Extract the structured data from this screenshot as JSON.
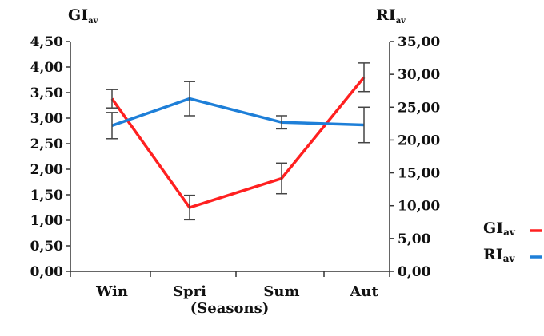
{
  "chart_data": {
    "type": "line",
    "categories": [
      "Win",
      "Spri",
      "Sum",
      "Aut"
    ],
    "xlabel": "(Seasons)",
    "y_left": {
      "label_main": "GI",
      "label_sub": "av",
      "range": [
        0,
        4.5
      ],
      "ticks": [
        "0,00",
        "0,50",
        "1,00",
        "1,50",
        "2,00",
        "2,50",
        "3,00",
        "3,50",
        "4,00",
        "4,50"
      ]
    },
    "y_right": {
      "label_main": "RI",
      "label_sub": "av",
      "range": [
        0,
        35
      ],
      "ticks": [
        "0,00",
        "5,00",
        "10,00",
        "15,00",
        "20,00",
        "25,00",
        "30,00",
        "35,00"
      ]
    },
    "series": [
      {
        "name": "GI",
        "name_sub": "av",
        "axis": "left",
        "color": "#ff2020",
        "values": [
          3.38,
          1.25,
          1.82,
          3.8
        ],
        "error": [
          0.18,
          0.24,
          0.3,
          0.28
        ]
      },
      {
        "name": "RI",
        "name_sub": "av",
        "axis": "right",
        "color": "#1e7fd8",
        "values": [
          22.2,
          26.3,
          22.7,
          22.3
        ],
        "error": [
          2.0,
          2.6,
          1.0,
          2.7
        ]
      }
    ],
    "grid": false,
    "legend_position": "right"
  }
}
